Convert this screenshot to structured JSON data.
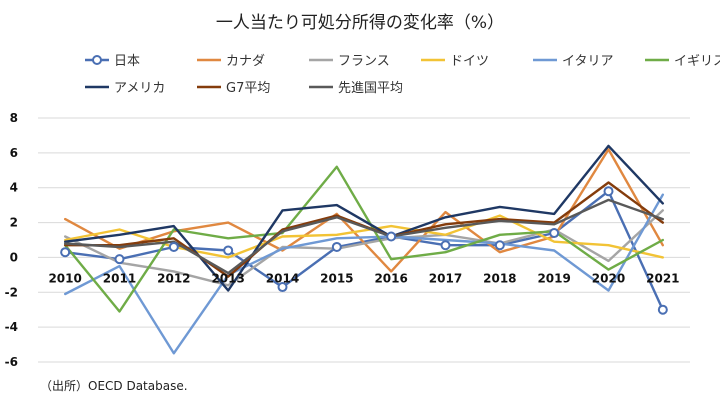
{
  "chart_data": {
    "type": "line",
    "title": "一人当たり可処分所得の変化率（%）",
    "source": "（出所）OECD Database.",
    "xlabel": "",
    "ylabel": "",
    "x": [
      "2010",
      "2011",
      "2012",
      "2013",
      "2014",
      "2015",
      "2016",
      "2017",
      "2018",
      "2019",
      "2020",
      "2021"
    ],
    "ylim": [
      -6,
      8
    ],
    "yticks": [
      "8",
      "6",
      "4",
      "2",
      "0",
      "-2",
      "-4",
      "-6"
    ],
    "grid": true,
    "legend_position": "top",
    "series": [
      {
        "name": "日本",
        "color": "#4a6fb3",
        "markers": true,
        "values": [
          0.3,
          -0.1,
          0.6,
          0.4,
          -1.7,
          0.6,
          1.2,
          0.7,
          0.7,
          1.4,
          3.8,
          -3.0
        ]
      },
      {
        "name": "カナダ",
        "color": "#e08840",
        "markers": false,
        "values": [
          2.2,
          0.5,
          1.5,
          2.0,
          0.4,
          2.5,
          -0.8,
          2.6,
          0.3,
          1.2,
          6.2,
          0.7
        ]
      },
      {
        "name": "フランス",
        "color": "#a5a5a5",
        "markers": false,
        "values": [
          1.2,
          -0.3,
          -0.8,
          -1.6,
          0.6,
          0.5,
          1.1,
          1.3,
          0.8,
          1.6,
          -0.2,
          2.7
        ]
      },
      {
        "name": "ドイツ",
        "color": "#f2c335",
        "markers": false,
        "values": [
          1.0,
          1.6,
          0.6,
          0.0,
          1.2,
          1.3,
          1.8,
          1.3,
          2.4,
          0.9,
          0.7,
          0.0
        ]
      },
      {
        "name": "イタリア",
        "color": "#6f99d4",
        "markers": false,
        "values": [
          -2.1,
          -0.5,
          -5.5,
          -1.0,
          0.5,
          1.1,
          1.2,
          1.0,
          0.8,
          0.4,
          -1.9,
          3.6
        ]
      },
      {
        "name": "イギリス",
        "color": "#6fac47",
        "markers": false,
        "values": [
          0.7,
          -3.1,
          1.6,
          1.1,
          1.4,
          5.2,
          -0.1,
          0.3,
          1.3,
          1.5,
          -0.7,
          1.0
        ]
      },
      {
        "name": "アメリカ",
        "color": "#1f3864",
        "markers": false,
        "values": [
          0.9,
          1.3,
          1.8,
          -1.9,
          2.7,
          3.0,
          1.2,
          2.3,
          2.9,
          2.5,
          6.4,
          3.1
        ]
      },
      {
        "name": "G7平均",
        "color": "#843c0c",
        "markers": false,
        "values": [
          0.7,
          0.7,
          1.1,
          -1.1,
          1.6,
          2.4,
          1.2,
          1.9,
          2.2,
          2.0,
          4.3,
          2.0
        ]
      },
      {
        "name": "先進国平均",
        "color": "#595959",
        "markers": false,
        "values": [
          0.8,
          0.6,
          0.9,
          -0.9,
          1.5,
          2.3,
          1.2,
          1.7,
          2.1,
          1.9,
          3.3,
          2.2
        ]
      }
    ]
  }
}
